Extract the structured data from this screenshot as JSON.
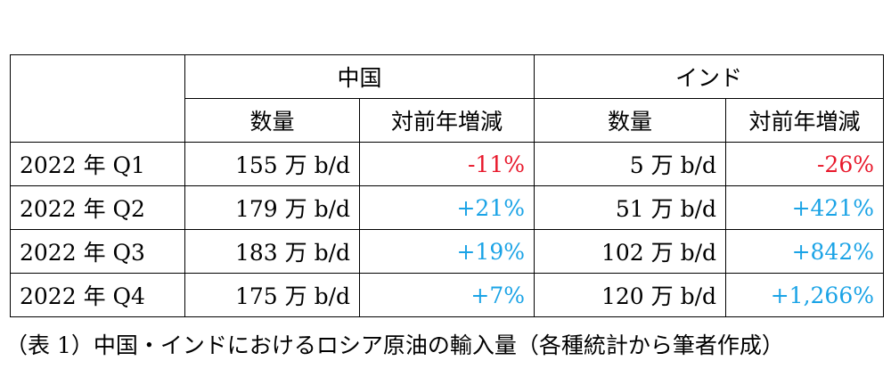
{
  "table": {
    "groups": [
      "中国",
      "インド"
    ],
    "subheaders": [
      "数量",
      "対前年増減",
      "数量",
      "対前年増減"
    ],
    "rows": [
      {
        "label": "2022 年 Q1",
        "china_volume": "155 万 b/d",
        "china_change": "-11%",
        "india_volume": "5 万 b/d",
        "india_change": "-26%"
      },
      {
        "label": "2022 年 Q2",
        "china_volume": "179 万 b/d",
        "china_change": "+21%",
        "india_volume": "51 万 b/d",
        "india_change": "+421%"
      },
      {
        "label": "2022 年 Q3",
        "china_volume": "183 万 b/d",
        "china_change": "+19%",
        "india_volume": "102 万 b/d",
        "india_change": "+842%"
      },
      {
        "label": "2022 年 Q4",
        "china_volume": "175 万 b/d",
        "china_change": "+7%",
        "india_volume": "120 万 b/d",
        "india_change": "+1,266%"
      }
    ]
  },
  "caption": "（表 1）中国・インドにおけるロシア原油の輸入量（各種統計から筆者作成）",
  "colors": {
    "negative": "#e8192c",
    "positive": "#1aa3e6"
  }
}
